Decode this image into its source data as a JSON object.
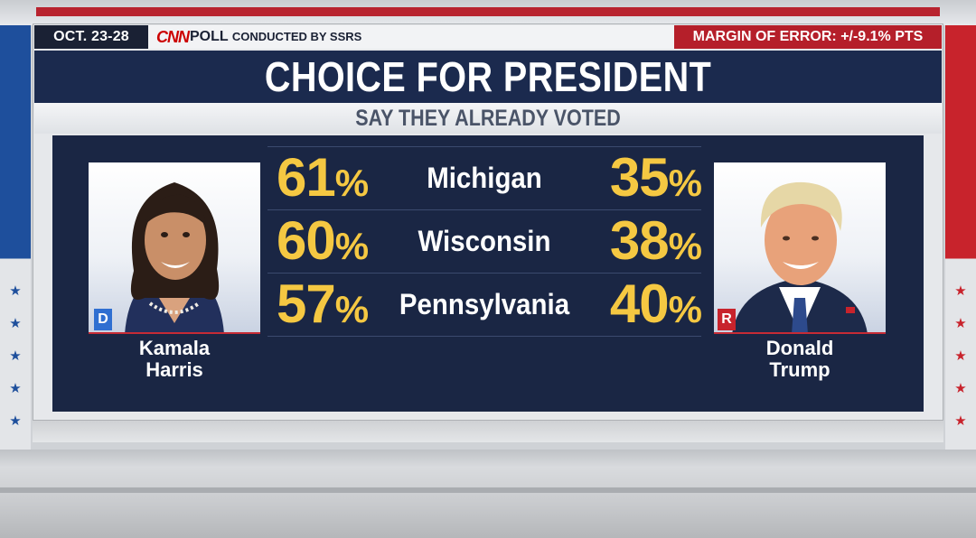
{
  "header": {
    "date": "OCT. 23-28",
    "network": "CNN",
    "poll_label": "POLL",
    "conducted_by": "CONDUCTED BY SSRS",
    "margin_of_error": "MARGIN OF ERROR: +/-9.1% PTS"
  },
  "title": "CHOICE FOR PRESIDENT",
  "subtitle": "SAY THEY ALREADY VOTED",
  "candidates": {
    "left": {
      "first": "Kamala",
      "last": "Harris",
      "party": "D",
      "party_color": "#2f6fd1"
    },
    "right": {
      "first": "Donald",
      "last": "Trump",
      "party": "R",
      "party_color": "#c8232c"
    }
  },
  "results": [
    {
      "state": "Michigan",
      "harris": "61",
      "trump": "35"
    },
    {
      "state": "Wisconsin",
      "harris": "60",
      "trump": "38"
    },
    {
      "state": "Pennsylvania",
      "harris": "57",
      "trump": "40"
    }
  ],
  "percent_sign": "%",
  "colors": {
    "navy": "#1a2644",
    "gold": "#f5c842",
    "red": "#b51f2a"
  }
}
